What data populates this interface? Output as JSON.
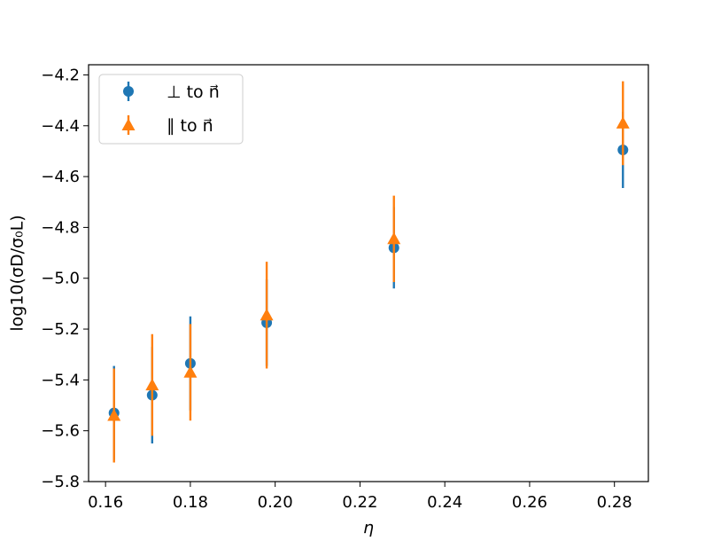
{
  "chart_data": {
    "type": "scatter",
    "title": "",
    "xlabel": "η",
    "ylabel": "log10(σD/σ₀L)",
    "xlim": [
      0.156,
      0.288
    ],
    "ylim": [
      -5.8,
      -4.16
    ],
    "x_ticks": [
      0.16,
      0.18,
      0.2,
      0.22,
      0.24,
      0.26,
      0.28
    ],
    "x_tick_labels": [
      "0.16",
      "0.18",
      "0.20",
      "0.22",
      "0.24",
      "0.26",
      "0.28"
    ],
    "y_ticks": [
      -5.8,
      -5.6,
      -5.4,
      -5.2,
      -5.0,
      -4.8,
      -4.6,
      -4.4,
      -4.2
    ],
    "y_tick_labels": [
      "−5.8",
      "−5.6",
      "−5.4",
      "−5.2",
      "−5.0",
      "−4.8",
      "−4.6",
      "−4.4",
      "−4.2"
    ],
    "grid": false,
    "legend_position": "top-left",
    "series": [
      {
        "name": "⊥ to n⃗",
        "marker": "circle",
        "color": "#1f77b4",
        "points": [
          {
            "x": 0.162,
            "y": -5.53,
            "err": 0.185
          },
          {
            "x": 0.171,
            "y": -5.46,
            "err": 0.19
          },
          {
            "x": 0.18,
            "y": -5.335,
            "err": 0.185
          },
          {
            "x": 0.198,
            "y": -5.175,
            "err": 0.17
          },
          {
            "x": 0.228,
            "y": -4.88,
            "err": 0.16
          },
          {
            "x": 0.282,
            "y": -4.495,
            "err": 0.15
          }
        ]
      },
      {
        "name": "∥ to n⃗",
        "marker": "triangle",
        "color": "#ff7f0e",
        "points": [
          {
            "x": 0.162,
            "y": -5.54,
            "err": 0.185
          },
          {
            "x": 0.171,
            "y": -5.42,
            "err": 0.2
          },
          {
            "x": 0.18,
            "y": -5.37,
            "err": 0.19
          },
          {
            "x": 0.198,
            "y": -5.145,
            "err": 0.21
          },
          {
            "x": 0.228,
            "y": -4.845,
            "err": 0.17
          },
          {
            "x": 0.282,
            "y": -4.39,
            "err": 0.165
          }
        ]
      }
    ]
  }
}
